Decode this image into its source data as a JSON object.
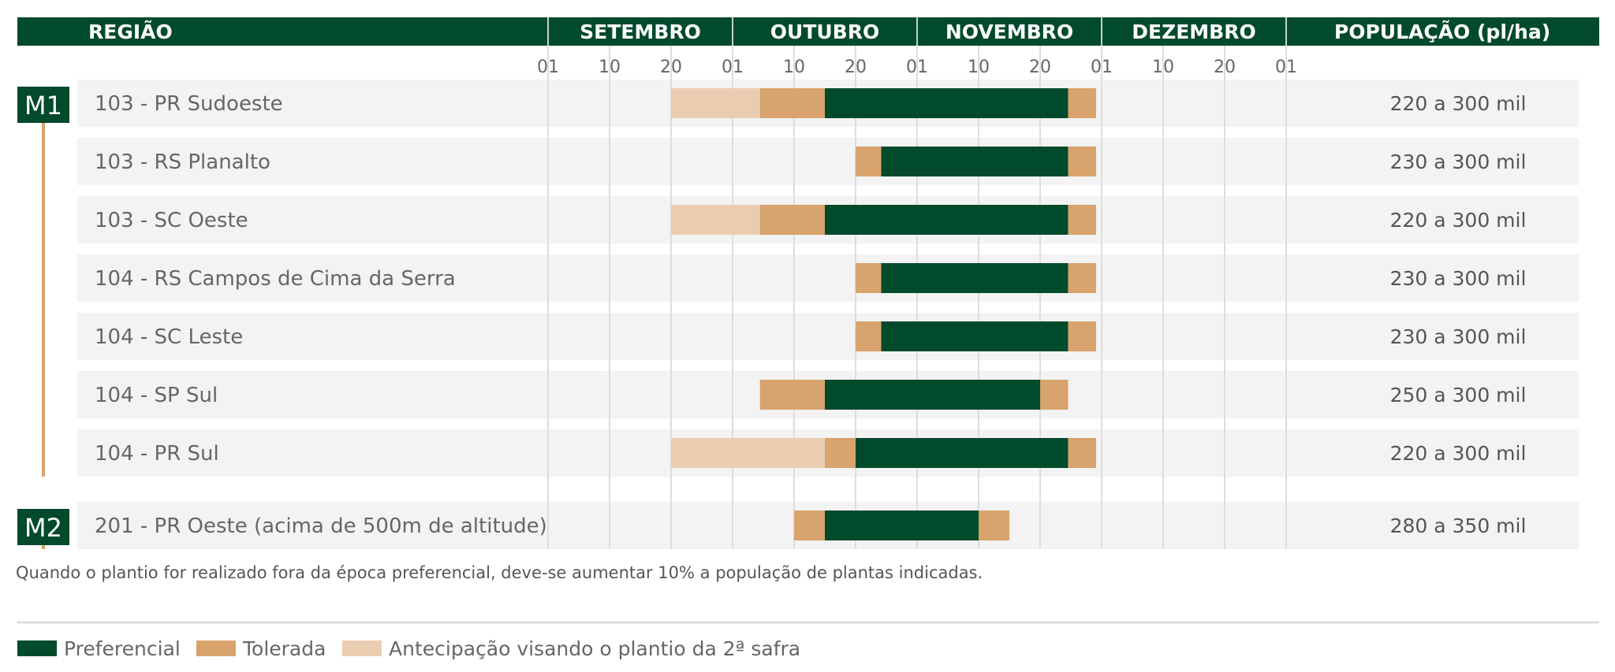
{
  "colors": {
    "header_bg": "#024a2c",
    "preferencial": "#024a2c",
    "tolerada": "#d8a36c",
    "antecipacao": "#eacdb0",
    "row_bg": "#f2f3f2",
    "gridline": "#dddddd",
    "group_line": "#d8a36c"
  },
  "header": {
    "regiao": "REGIÃO",
    "months": [
      "SETEMBRO",
      "OUTUBRO",
      "NOVEMBRO",
      "DEZEMBRO"
    ],
    "populacao": "POPULAÇÃO (pl/ha)"
  },
  "chart_data": {
    "type": "gantt",
    "x_axis": {
      "tick_labels": [
        "01",
        "10",
        "20",
        "01",
        "10",
        "20",
        "01",
        "10",
        "20",
        "01",
        "10",
        "20",
        "01"
      ],
      "range": [
        "09-01",
        "12-31"
      ]
    },
    "groups": [
      {
        "label": "M1",
        "rows": [
          {
            "region": "103 - PR Sudoeste",
            "population": "220 a 300 mil",
            "segments": [
              {
                "type": "antecipacao",
                "start": "09-20",
                "end": "10-05"
              },
              {
                "type": "tolerada",
                "start": "10-05",
                "end": "10-15"
              },
              {
                "type": "preferencial",
                "start": "10-15",
                "end": "11-25"
              },
              {
                "type": "tolerada",
                "start": "11-25",
                "end": "11-30"
              }
            ]
          },
          {
            "region": "103 - RS Planalto",
            "population": "230 a 300 mil",
            "segments": [
              {
                "type": "tolerada",
                "start": "10-20",
                "end": "10-25"
              },
              {
                "type": "preferencial",
                "start": "10-25",
                "end": "11-25"
              },
              {
                "type": "tolerada",
                "start": "11-25",
                "end": "11-30"
              }
            ]
          },
          {
            "region": "103 - SC Oeste",
            "population": "220 a 300 mil",
            "segments": [
              {
                "type": "antecipacao",
                "start": "09-20",
                "end": "10-05"
              },
              {
                "type": "tolerada",
                "start": "10-05",
                "end": "10-15"
              },
              {
                "type": "preferencial",
                "start": "10-15",
                "end": "11-25"
              },
              {
                "type": "tolerada",
                "start": "11-25",
                "end": "11-30"
              }
            ]
          },
          {
            "region": "104 - RS Campos de Cima da Serra",
            "population": "230 a 300 mil",
            "segments": [
              {
                "type": "tolerada",
                "start": "10-20",
                "end": "10-25"
              },
              {
                "type": "preferencial",
                "start": "10-25",
                "end": "11-25"
              },
              {
                "type": "tolerada",
                "start": "11-25",
                "end": "11-30"
              }
            ]
          },
          {
            "region": "104 - SC Leste",
            "population": "230 a 300 mil",
            "segments": [
              {
                "type": "tolerada",
                "start": "10-20",
                "end": "10-25"
              },
              {
                "type": "preferencial",
                "start": "10-25",
                "end": "11-25"
              },
              {
                "type": "tolerada",
                "start": "11-25",
                "end": "11-30"
              }
            ]
          },
          {
            "region": "104 - SP Sul",
            "population": "250 a 300 mil",
            "segments": [
              {
                "type": "tolerada",
                "start": "10-05",
                "end": "10-15"
              },
              {
                "type": "preferencial",
                "start": "10-15",
                "end": "11-20"
              },
              {
                "type": "tolerada",
                "start": "11-20",
                "end": "11-25"
              }
            ]
          },
          {
            "region": "104 - PR Sul",
            "population": "220 a 300 mil",
            "segments": [
              {
                "type": "antecipacao",
                "start": "09-20",
                "end": "10-15"
              },
              {
                "type": "tolerada",
                "start": "10-15",
                "end": "10-20"
              },
              {
                "type": "preferencial",
                "start": "10-20",
                "end": "11-25"
              },
              {
                "type": "tolerada",
                "start": "11-25",
                "end": "11-30"
              }
            ]
          }
        ]
      },
      {
        "label": "M2",
        "rows": [
          {
            "region": "201 - PR Oeste (acima de 500m de altitude)",
            "population": "280 a 350 mil",
            "segments": [
              {
                "type": "tolerada",
                "start": "10-10",
                "end": "10-15"
              },
              {
                "type": "preferencial",
                "start": "10-15",
                "end": "11-10"
              },
              {
                "type": "tolerada",
                "start": "11-10",
                "end": "11-15"
              }
            ]
          }
        ]
      }
    ]
  },
  "footnote": "Quando o plantio for realizado fora da época preferencial, deve-se aumentar 10% a população de plantas indicadas.",
  "legend": [
    {
      "type": "preferencial",
      "label": "Preferencial"
    },
    {
      "type": "tolerada",
      "label": "Tolerada"
    },
    {
      "type": "antecipacao",
      "label": "Antecipação visando o plantio da 2ª safra"
    }
  ]
}
